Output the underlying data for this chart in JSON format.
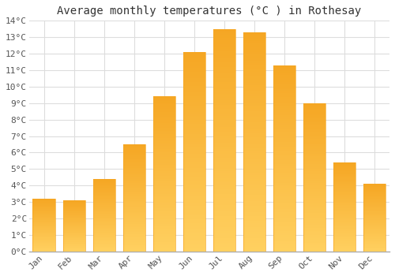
{
  "title": "Average monthly temperatures (°C ) in Rothesay",
  "months": [
    "Jan",
    "Feb",
    "Mar",
    "Apr",
    "May",
    "Jun",
    "Jul",
    "Aug",
    "Sep",
    "Oct",
    "Nov",
    "Dec"
  ],
  "values": [
    3.2,
    3.1,
    4.4,
    6.5,
    9.4,
    12.1,
    13.5,
    13.3,
    11.3,
    9.0,
    5.4,
    4.1
  ],
  "bar_color_top": "#F5A623",
  "bar_color_bottom": "#FFD060",
  "ylim": [
    0,
    14
  ],
  "yticks": [
    0,
    1,
    2,
    3,
    4,
    5,
    6,
    7,
    8,
    9,
    10,
    11,
    12,
    13,
    14
  ],
  "ytick_labels": [
    "0°C",
    "1°C",
    "2°C",
    "3°C",
    "4°C",
    "5°C",
    "6°C",
    "7°C",
    "8°C",
    "9°C",
    "10°C",
    "11°C",
    "12°C",
    "13°C",
    "14°C"
  ],
  "background_color": "#ffffff",
  "grid_color": "#dddddd",
  "title_fontsize": 10,
  "tick_fontsize": 8,
  "bar_width": 0.75
}
